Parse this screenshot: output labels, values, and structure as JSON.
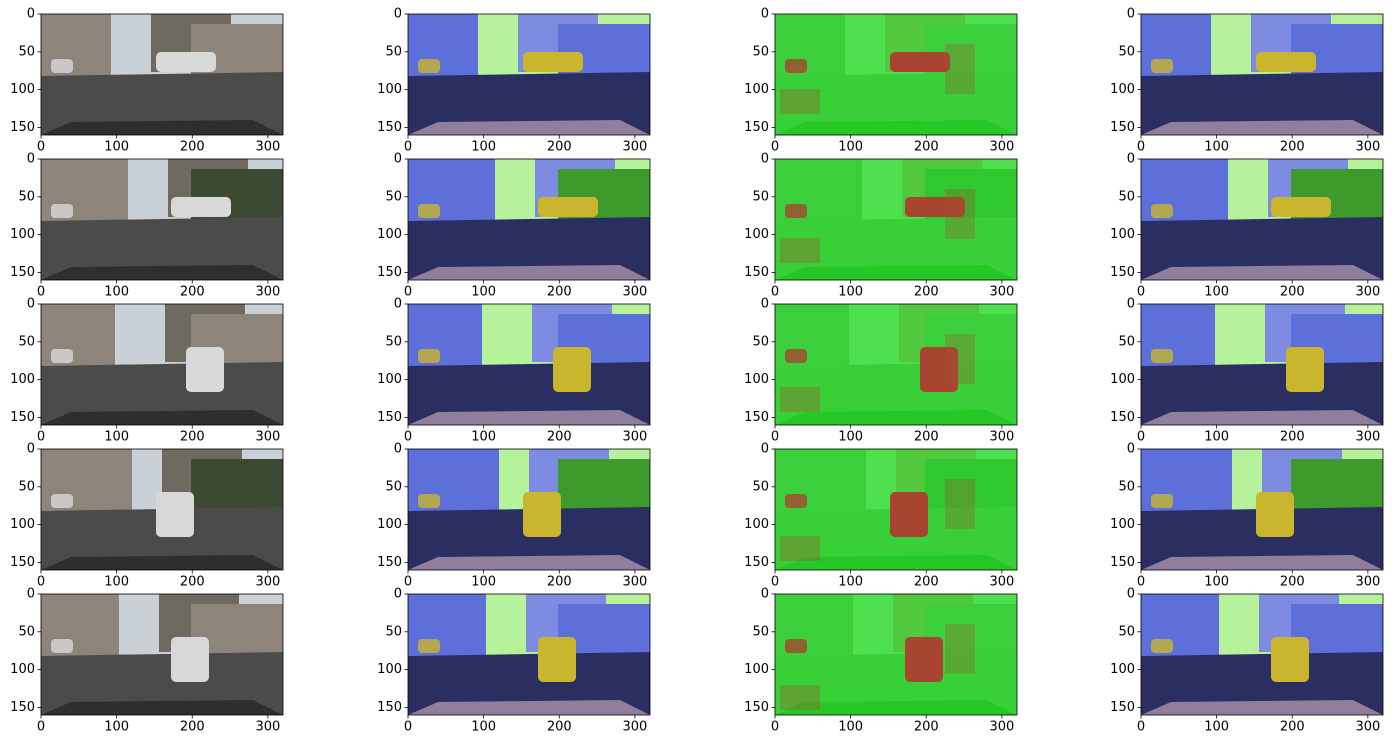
{
  "chart_data": [
    {
      "type": "image",
      "xlim": [
        0,
        320
      ],
      "ylim": [
        160,
        0
      ],
      "xticks": [
        0,
        100,
        200,
        300
      ],
      "yticks": [
        0,
        50,
        100,
        150
      ]
    },
    {
      "type": "image",
      "xlim": [
        0,
        320
      ],
      "ylim": [
        160,
        0
      ],
      "xticks": [
        0,
        100,
        200,
        300
      ],
      "yticks": [
        0,
        50,
        100,
        150
      ]
    },
    {
      "type": "image",
      "xlim": [
        0,
        320
      ],
      "ylim": [
        160,
        0
      ],
      "xticks": [
        0,
        100,
        200,
        300
      ],
      "yticks": [
        0,
        50,
        100,
        150
      ]
    },
    {
      "type": "image",
      "xlim": [
        0,
        320
      ],
      "ylim": [
        160,
        0
      ],
      "xticks": [
        0,
        100,
        200,
        300
      ],
      "yticks": [
        0,
        50,
        100,
        150
      ]
    },
    {
      "type": "image",
      "xlim": [
        0,
        320
      ],
      "ylim": [
        160,
        0
      ],
      "xticks": [
        0,
        100,
        200,
        300
      ],
      "yticks": [
        0,
        50,
        100,
        150
      ]
    },
    {
      "type": "image",
      "xlim": [
        0,
        320
      ],
      "ylim": [
        160,
        0
      ],
      "xticks": [
        0,
        100,
        200,
        300
      ],
      "yticks": [
        0,
        50,
        100,
        150
      ]
    },
    {
      "type": "image",
      "xlim": [
        0,
        320
      ],
      "ylim": [
        160,
        0
      ],
      "xticks": [
        0,
        100,
        200,
        300
      ],
      "yticks": [
        0,
        50,
        100,
        150
      ]
    },
    {
      "type": "image",
      "xlim": [
        0,
        320
      ],
      "ylim": [
        160,
        0
      ],
      "xticks": [
        0,
        100,
        200,
        300
      ],
      "yticks": [
        0,
        50,
        100,
        150
      ]
    },
    {
      "type": "image",
      "xlim": [
        0,
        320
      ],
      "ylim": [
        160,
        0
      ],
      "xticks": [
        0,
        100,
        200,
        300
      ],
      "yticks": [
        0,
        50,
        100,
        150
      ]
    },
    {
      "type": "image",
      "xlim": [
        0,
        320
      ],
      "ylim": [
        160,
        0
      ],
      "xticks": [
        0,
        100,
        200,
        300
      ],
      "yticks": [
        0,
        50,
        100,
        150
      ]
    },
    {
      "type": "image",
      "xlim": [
        0,
        320
      ],
      "ylim": [
        160,
        0
      ],
      "xticks": [
        0,
        100,
        200,
        300
      ],
      "yticks": [
        0,
        50,
        100,
        150
      ]
    },
    {
      "type": "image",
      "xlim": [
        0,
        320
      ],
      "ylim": [
        160,
        0
      ],
      "xticks": [
        0,
        100,
        200,
        300
      ],
      "yticks": [
        0,
        50,
        100,
        150
      ]
    },
    {
      "type": "image",
      "xlim": [
        0,
        320
      ],
      "ylim": [
        160,
        0
      ],
      "xticks": [
        0,
        100,
        200,
        300
      ],
      "yticks": [
        0,
        50,
        100,
        150
      ]
    },
    {
      "type": "image",
      "xlim": [
        0,
        320
      ],
      "ylim": [
        160,
        0
      ],
      "xticks": [
        0,
        100,
        200,
        300
      ],
      "yticks": [
        0,
        50,
        100,
        150
      ]
    },
    {
      "type": "image",
      "xlim": [
        0,
        320
      ],
      "ylim": [
        160,
        0
      ],
      "xticks": [
        0,
        100,
        200,
        300
      ],
      "yticks": [
        0,
        50,
        100,
        150
      ]
    },
    {
      "type": "image",
      "xlim": [
        0,
        320
      ],
      "ylim": [
        160,
        0
      ],
      "xticks": [
        0,
        100,
        200,
        300
      ],
      "yticks": [
        0,
        50,
        100,
        150
      ]
    },
    {
      "type": "image",
      "xlim": [
        0,
        320
      ],
      "ylim": [
        160,
        0
      ],
      "xticks": [
        0,
        100,
        200,
        300
      ],
      "yticks": [
        0,
        50,
        100,
        150
      ]
    },
    {
      "type": "image",
      "xlim": [
        0,
        320
      ],
      "ylim": [
        160,
        0
      ],
      "xticks": [
        0,
        100,
        200,
        300
      ],
      "yticks": [
        0,
        50,
        100,
        150
      ]
    },
    {
      "type": "image",
      "xlim": [
        0,
        320
      ],
      "ylim": [
        160,
        0
      ],
      "xticks": [
        0,
        100,
        200,
        300
      ],
      "yticks": [
        0,
        50,
        100,
        150
      ]
    },
    {
      "type": "image",
      "xlim": [
        0,
        320
      ],
      "ylim": [
        160,
        0
      ],
      "xticks": [
        0,
        100,
        200,
        300
      ],
      "yticks": [
        0,
        50,
        100,
        150
      ]
    }
  ]
}
